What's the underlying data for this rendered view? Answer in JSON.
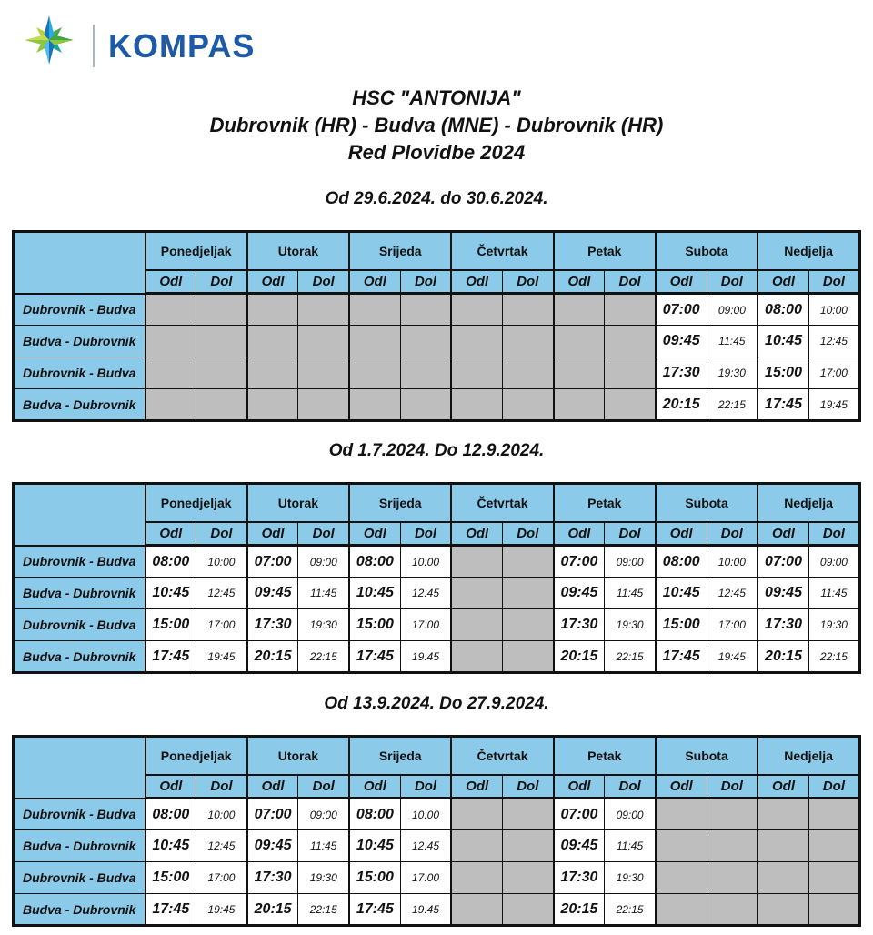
{
  "logo": {
    "brand": "KOMPAS",
    "brand_color": "#1E5AA5",
    "star_icon": "compass-star",
    "star_colors": [
      "#1C72BA",
      "#2FA9E1",
      "#8DC63F",
      "#45A546",
      "#B5D334",
      "#3FAE49",
      "#13A89E",
      "#4FB7E8",
      "#C6DB4E",
      "#55BCE9"
    ]
  },
  "title": {
    "line1": "HSC \"ANTONIJA\"",
    "line2": "Dubrovnik (HR) - Budva (MNE) - Dubrovnik (HR)",
    "line3": "Red Plovidbe 2024"
  },
  "table_template": {
    "days": [
      "Ponedjeljak",
      "Utorak",
      "Srijeda",
      "Četvrtak",
      "Petak",
      "Subota",
      "Nedjelja"
    ],
    "sub_columns": [
      "Odl",
      "Dol"
    ]
  },
  "colors": {
    "header_blue": "#8BCBE9",
    "empty_gray": "#BEBEBE",
    "border": "#111111"
  },
  "schedules": [
    {
      "period": "Od 29.6.2024. do 30.6.2024.",
      "routes": [
        "Dubrovnik - Budva",
        "Budva - Dubrovnik",
        "Dubrovnik - Budva",
        "Budva - Dubrovnik"
      ],
      "rows": [
        [
          null,
          null,
          null,
          null,
          null,
          [
            "07:00",
            "09:00"
          ],
          [
            "08:00",
            "10:00"
          ]
        ],
        [
          null,
          null,
          null,
          null,
          null,
          [
            "09:45",
            "11:45"
          ],
          [
            "10:45",
            "12:45"
          ]
        ],
        [
          null,
          null,
          null,
          null,
          null,
          [
            "17:30",
            "19:30"
          ],
          [
            "15:00",
            "17:00"
          ]
        ],
        [
          null,
          null,
          null,
          null,
          null,
          [
            "20:15",
            "22:15"
          ],
          [
            "17:45",
            "19:45"
          ]
        ]
      ]
    },
    {
      "period": "Od 1.7.2024. Do 12.9.2024.",
      "routes": [
        "Dubrovnik - Budva",
        "Budva - Dubrovnik",
        "Dubrovnik - Budva",
        "Budva - Dubrovnik"
      ],
      "rows": [
        [
          [
            "08:00",
            "10:00"
          ],
          [
            "07:00",
            "09:00"
          ],
          [
            "08:00",
            "10:00"
          ],
          null,
          [
            "07:00",
            "09:00"
          ],
          [
            "08:00",
            "10:00"
          ],
          [
            "07:00",
            "09:00"
          ]
        ],
        [
          [
            "10:45",
            "12:45"
          ],
          [
            "09:45",
            "11:45"
          ],
          [
            "10:45",
            "12:45"
          ],
          null,
          [
            "09:45",
            "11:45"
          ],
          [
            "10:45",
            "12:45"
          ],
          [
            "09:45",
            "11:45"
          ]
        ],
        [
          [
            "15:00",
            "17:00"
          ],
          [
            "17:30",
            "19:30"
          ],
          [
            "15:00",
            "17:00"
          ],
          null,
          [
            "17:30",
            "19:30"
          ],
          [
            "15:00",
            "17:00"
          ],
          [
            "17:30",
            "19:30"
          ]
        ],
        [
          [
            "17:45",
            "19:45"
          ],
          [
            "20:15",
            "22:15"
          ],
          [
            "17:45",
            "19:45"
          ],
          null,
          [
            "20:15",
            "22:15"
          ],
          [
            "17:45",
            "19:45"
          ],
          [
            "20:15",
            "22:15"
          ]
        ]
      ]
    },
    {
      "period": "Od 13.9.2024. Do 27.9.2024.",
      "routes": [
        "Dubrovnik - Budva",
        "Budva - Dubrovnik",
        "Dubrovnik - Budva",
        "Budva - Dubrovnik"
      ],
      "rows": [
        [
          [
            "08:00",
            "10:00"
          ],
          [
            "07:00",
            "09:00"
          ],
          [
            "08:00",
            "10:00"
          ],
          null,
          [
            "07:00",
            "09:00"
          ],
          null,
          null
        ],
        [
          [
            "10:45",
            "12:45"
          ],
          [
            "09:45",
            "11:45"
          ],
          [
            "10:45",
            "12:45"
          ],
          null,
          [
            "09:45",
            "11:45"
          ],
          null,
          null
        ],
        [
          [
            "15:00",
            "17:00"
          ],
          [
            "17:30",
            "19:30"
          ],
          [
            "15:00",
            "17:00"
          ],
          null,
          [
            "17:30",
            "19:30"
          ],
          null,
          null
        ],
        [
          [
            "17:45",
            "19:45"
          ],
          [
            "20:15",
            "22:15"
          ],
          [
            "17:45",
            "19:45"
          ],
          null,
          [
            "20:15",
            "22:15"
          ],
          null,
          null
        ]
      ]
    }
  ]
}
